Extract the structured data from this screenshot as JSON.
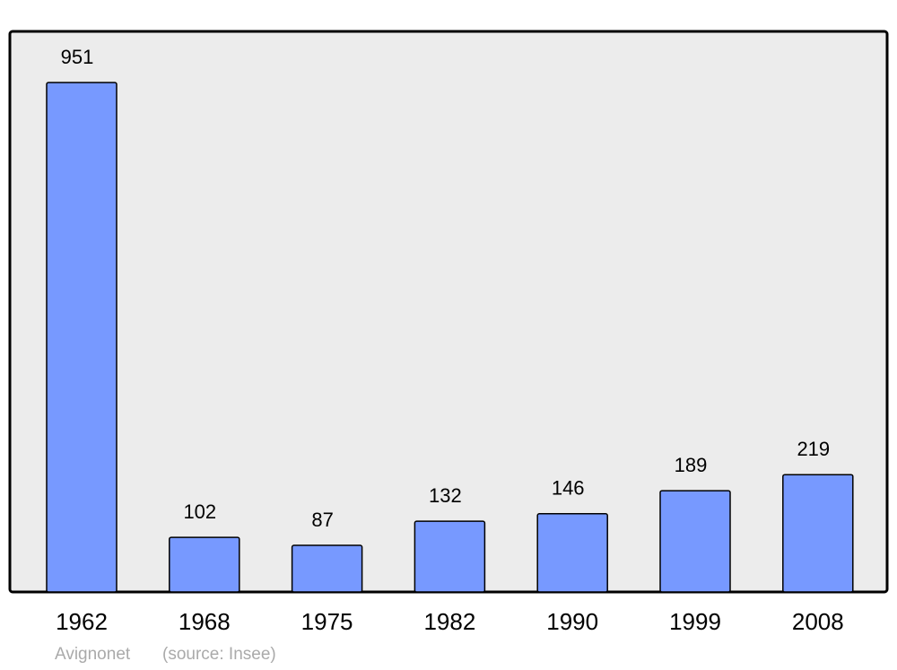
{
  "chart_data": {
    "type": "bar",
    "categories": [
      "1962",
      "1968",
      "1975",
      "1982",
      "1990",
      "1999",
      "2008"
    ],
    "values": [
      951,
      102,
      87,
      132,
      146,
      189,
      219
    ],
    "color": "#7799ff",
    "caption": "Avignonet",
    "source": "(source: Insee)"
  }
}
